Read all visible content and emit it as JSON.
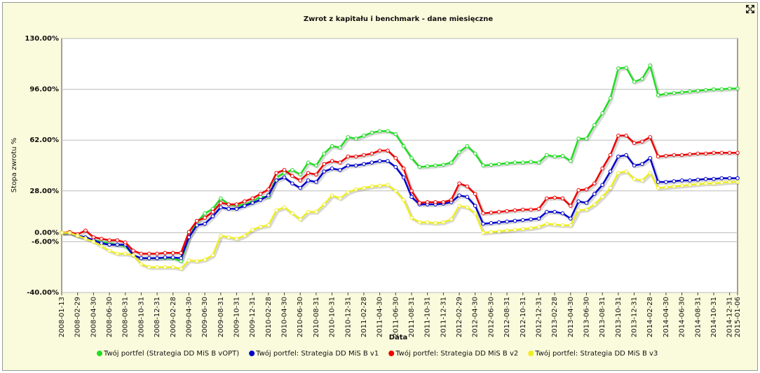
{
  "chart_data": {
    "type": "line",
    "title": "Zwrot z kapitału i benchmark - dane miesięczne",
    "y_label": "Stopa zwrotu %",
    "x_label": "Data",
    "categories": [
      "2008-01-13",
      null,
      "2008-02-29",
      null,
      "2008-04-30",
      null,
      "2008-06-30",
      null,
      "2008-08-31",
      null,
      "2008-10-31",
      null,
      "2008-12-31",
      null,
      "2009-02-28",
      null,
      "2009-04-30",
      null,
      "2009-06-30",
      null,
      "2009-08-31",
      null,
      "2009-10-31",
      null,
      "2009-12-31",
      null,
      "2010-02-28",
      null,
      "2010-04-30",
      null,
      "2010-06-30",
      null,
      "2010-08-31",
      null,
      "2010-10-31",
      null,
      "2010-12-31",
      null,
      "2011-02-28",
      null,
      "2011-04-30",
      null,
      "2011-06-30",
      null,
      "2011-08-31",
      null,
      "2011-10-31",
      null,
      "2011-12-31",
      null,
      "2012-02-29",
      null,
      "2012-04-30",
      null,
      "2012-06-30",
      null,
      "2012-08-31",
      null,
      "2012-10-31",
      null,
      "2012-12-31",
      null,
      "2013-02-28",
      null,
      "2013-04-30",
      null,
      "2013-06-30",
      null,
      "2013-08-31",
      null,
      "2013-10-31",
      null,
      "2013-12-31",
      null,
      "2014-02-28",
      null,
      "2014-04-30",
      null,
      "2014-06-30",
      null,
      "2014-08-31",
      null,
      "2014-10-31",
      null,
      "2014-12-31",
      "2015-01-06"
    ],
    "series": [
      {
        "name": "Twój portfel (Strategia DD MiS B vOPT)",
        "color": "#22dd22",
        "values": [
          0,
          0,
          -2,
          -3,
          -5,
          -6,
          -7,
          -8,
          -9,
          -15,
          -17,
          -17,
          -17,
          -17,
          -17,
          -19,
          -3,
          7,
          13,
          16,
          23,
          19,
          18,
          19,
          21,
          24,
          24,
          37,
          40,
          42,
          39,
          47,
          45,
          53,
          58,
          57,
          64,
          63,
          65,
          67,
          68,
          68,
          66,
          58,
          50,
          44,
          44.5,
          45,
          45.5,
          47,
          54,
          58,
          53,
          45,
          45.5,
          46,
          46.5,
          47,
          47,
          47.5,
          47,
          52,
          51,
          51.5,
          48,
          63,
          63,
          72,
          80,
          90,
          110,
          110.5,
          101,
          103,
          112,
          92,
          93,
          93.5,
          94,
          94.5,
          95,
          95.5,
          96,
          96,
          96.5,
          96.5
        ]
      },
      {
        "name": "Twój portfel: Strategia DD MiS B v1",
        "color": "#0000cc",
        "values": [
          0,
          0,
          -2,
          -3,
          -5,
          -7,
          -8,
          -8,
          -8,
          -15,
          -17,
          -17,
          -17,
          -16.5,
          -16.5,
          -17,
          -3,
          5,
          6,
          11,
          17,
          16,
          16,
          18,
          20,
          22,
          25,
          35,
          37,
          33,
          30,
          35,
          34,
          41,
          43,
          42,
          45,
          45,
          46,
          47,
          48,
          48,
          44,
          37,
          24,
          19,
          19,
          19,
          19.5,
          20.5,
          25,
          24,
          18,
          6,
          6.5,
          7,
          7.5,
          8,
          8.5,
          9,
          9.5,
          14,
          14,
          13,
          9.5,
          21,
          20,
          26,
          32,
          41,
          51,
          52,
          45,
          46,
          50,
          34,
          34,
          34.5,
          35,
          35,
          35.5,
          36,
          36,
          36.5,
          36.5,
          36.5
        ]
      },
      {
        "name": "Twój portfel: Strategia DD MiS B v2",
        "color": "#ee0000",
        "values": [
          0,
          0.5,
          -1,
          1.5,
          -3,
          -4,
          -5,
          -5,
          -6.5,
          -12,
          -14,
          -14,
          -14,
          -13.5,
          -13.5,
          -13.5,
          0.5,
          8,
          10,
          14,
          20,
          19,
          19,
          21,
          23,
          26,
          29,
          40,
          42,
          38,
          35,
          40,
          39,
          46,
          48,
          47,
          51,
          51,
          52,
          53,
          55,
          55,
          50,
          43,
          28,
          20,
          20.5,
          20.5,
          20.5,
          22,
          33,
          31,
          26,
          13,
          13.5,
          14,
          14.5,
          15,
          15.5,
          15.5,
          16,
          23,
          23.5,
          23,
          18,
          28.5,
          29,
          33,
          43,
          52,
          65,
          65,
          60,
          61,
          64,
          51,
          51.5,
          52,
          52,
          52.5,
          53,
          53,
          53.5,
          53.5,
          53.5,
          53.5
        ]
      },
      {
        "name": "Twój portfel: Strategia DD MiS B v3",
        "color": "#eeee22",
        "values": [
          0,
          0,
          -2,
          -4,
          -6,
          -9,
          -12,
          -14,
          -14,
          -15,
          -21,
          -23,
          -23,
          -23,
          -23,
          -24,
          -18.5,
          -19,
          -18,
          -15,
          -2,
          -3,
          -4,
          -2,
          2,
          4,
          5,
          15,
          17,
          13,
          9,
          14,
          14,
          19,
          25,
          23,
          27,
          29,
          30,
          31,
          31.5,
          32,
          28,
          22,
          10,
          7,
          7,
          6.5,
          7,
          9,
          18,
          17,
          13,
          0,
          0.5,
          1,
          1.5,
          2,
          2.5,
          3,
          4,
          6,
          5.5,
          5,
          5,
          15,
          15.5,
          19,
          24,
          30,
          40,
          41,
          36,
          35,
          40,
          30,
          30.5,
          31,
          31.5,
          32,
          32.5,
          33,
          33,
          33.5,
          34,
          34
        ]
      }
    ],
    "ylim": [
      -40,
      130
    ],
    "yticks": [
      {
        "value": -40,
        "label": "-40.00%"
      },
      {
        "value": -6,
        "label": "-6.00%"
      },
      {
        "value": 0,
        "label": "0.00%"
      },
      {
        "value": 28,
        "label": "28.00%"
      },
      {
        "value": 62,
        "label": "62.00%"
      },
      {
        "value": 96,
        "label": "96.00%"
      },
      {
        "value": 130,
        "label": "130.00%"
      }
    ],
    "grid": true
  }
}
